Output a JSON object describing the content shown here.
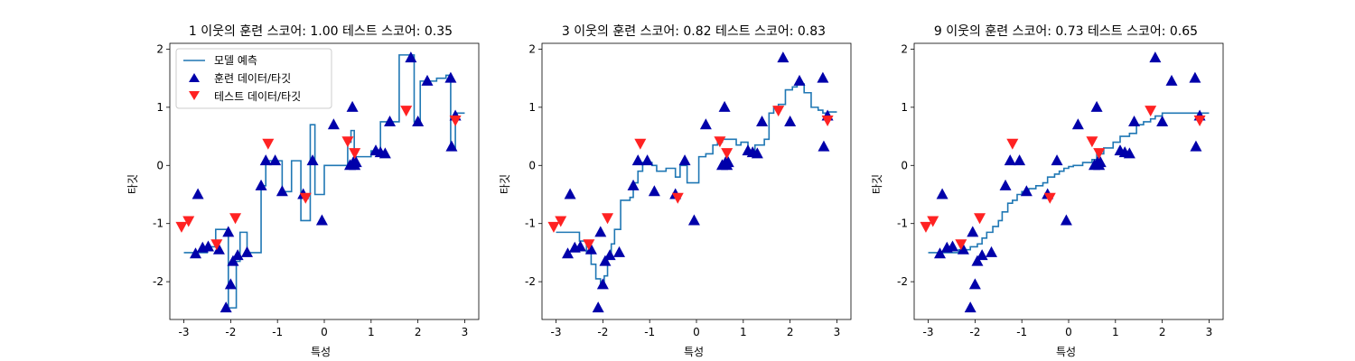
{
  "colors": {
    "model": "#1f77b4",
    "train": "#0000aa",
    "test": "#ff2222"
  },
  "legend": {
    "model": "모델 예측",
    "train": "훈련 데이터/타깃",
    "test": "테스트 데이터/타깃"
  },
  "chart_data": [
    {
      "type": "line",
      "title": "1 이웃의 훈련 스코어: 1.00 테스트 스코어: 0.35",
      "xlabel": "특성",
      "ylabel": "타깃",
      "xlim": [
        -3.3,
        3.3
      ],
      "ylim": [
        -2.65,
        2.1
      ],
      "xticks": [
        "-3",
        "-2",
        "-1",
        "0",
        "1",
        "2",
        "3"
      ],
      "yticks": [
        "-2",
        "-1",
        "0",
        "1",
        "2"
      ],
      "legend": "upper left",
      "prediction": {
        "x": [
          -3.0,
          -2.7,
          -2.6,
          -2.5,
          -2.42,
          -2.32,
          -2.2,
          -2.05,
          -1.95,
          -1.88,
          -1.8,
          -1.65,
          -1.55,
          -1.35,
          -1.25,
          -1.15,
          -1.0,
          -0.9,
          -0.75,
          -0.7,
          -0.6,
          -0.5,
          -0.45,
          -0.38,
          -0.3,
          -0.2,
          -0.05,
          0.0,
          0.1,
          0.2,
          0.3,
          0.4,
          0.5,
          0.57,
          0.64,
          0.7,
          0.8,
          1.0,
          1.1,
          1.2,
          1.35,
          1.6,
          1.72,
          1.85,
          1.92,
          2.05,
          2.2,
          2.4,
          2.6,
          2.7,
          2.8,
          3.0
        ],
        "y": [
          -1.5,
          -1.5,
          -1.5,
          -1.4,
          -1.4,
          -1.1,
          -1.1,
          -2.45,
          -2.45,
          -1.65,
          -1.15,
          -1.5,
          -1.5,
          -0.35,
          0.08,
          0.08,
          0.08,
          -0.45,
          -0.45,
          0.08,
          0.08,
          -0.95,
          -0.95,
          -0.95,
          0.7,
          -0.5,
          -0.5,
          0.0,
          0.0,
          0.0,
          0.0,
          0.0,
          0.4,
          0.6,
          0.15,
          0.15,
          0.15,
          0.25,
          0.25,
          0.75,
          0.75,
          1.9,
          1.9,
          1.9,
          0.75,
          1.45,
          1.45,
          1.5,
          1.55,
          0.3,
          0.9,
          0.9
        ]
      }
    },
    {
      "type": "line",
      "title": "3 이웃의 훈련 스코어: 0.82 테스트 스코어: 0.83",
      "xlabel": "특성",
      "ylabel": "타깃",
      "xlim": [
        -3.3,
        3.3
      ],
      "ylim": [
        -2.65,
        2.1
      ],
      "xticks": [
        "-3",
        "-2",
        "-1",
        "0",
        "1",
        "2",
        "3"
      ],
      "yticks": [
        "-2",
        "-1",
        "0",
        "1",
        "2"
      ],
      "prediction": {
        "x": [
          -3.0,
          -2.65,
          -2.5,
          -2.35,
          -2.25,
          -2.15,
          -2.05,
          -1.97,
          -1.9,
          -1.82,
          -1.75,
          -1.62,
          -1.5,
          -1.42,
          -1.35,
          -1.25,
          -1.15,
          -1.05,
          -0.95,
          -0.85,
          -0.65,
          -0.45,
          -0.35,
          -0.2,
          -0.05,
          0.05,
          0.2,
          0.35,
          0.45,
          0.55,
          0.7,
          0.85,
          0.95,
          1.1,
          1.25,
          1.35,
          1.45,
          1.55,
          1.65,
          1.75,
          1.9,
          2.05,
          2.15,
          2.3,
          2.45,
          2.6,
          2.7,
          2.8,
          3.0
        ],
        "y": [
          -1.15,
          -1.15,
          -1.3,
          -1.5,
          -1.7,
          -1.95,
          -2.1,
          -1.9,
          -1.55,
          -1.35,
          -1.1,
          -0.6,
          -0.6,
          -0.55,
          -0.3,
          -0.1,
          0.05,
          0.05,
          0.0,
          -0.1,
          -0.05,
          -0.2,
          0.0,
          -0.3,
          -0.3,
          0.15,
          0.2,
          0.35,
          0.4,
          0.45,
          0.45,
          0.35,
          0.4,
          0.2,
          0.35,
          0.35,
          0.45,
          0.9,
          1.0,
          1.05,
          1.3,
          1.35,
          1.4,
          1.25,
          1.0,
          0.95,
          0.9,
          0.92,
          0.92
        ]
      }
    },
    {
      "type": "line",
      "title": "9 이웃의 훈련 스코어: 0.73 테스트 스코어: 0.65",
      "xlabel": "특성",
      "ylabel": "타깃",
      "xlim": [
        -3.3,
        3.3
      ],
      "ylim": [
        -2.65,
        2.1
      ],
      "xticks": [
        "-3",
        "-2",
        "-1",
        "0",
        "1",
        "2",
        "3"
      ],
      "yticks": [
        "-2",
        "-1",
        "0",
        "1",
        "2"
      ],
      "prediction": {
        "x": [
          -3.0,
          -2.5,
          -2.35,
          -2.1,
          -1.95,
          -1.85,
          -1.75,
          -1.62,
          -1.5,
          -1.42,
          -1.3,
          -1.2,
          -1.1,
          -1.0,
          -0.85,
          -0.7,
          -0.55,
          -0.45,
          -0.3,
          -0.2,
          -0.1,
          0.0,
          0.1,
          0.3,
          0.5,
          0.6,
          0.75,
          0.95,
          1.1,
          1.3,
          1.45,
          1.6,
          1.75,
          1.85,
          2.0,
          2.2,
          2.5,
          3.0
        ],
        "y": [
          -1.5,
          -1.5,
          -1.45,
          -1.4,
          -1.35,
          -1.25,
          -1.15,
          -1.05,
          -0.95,
          -0.8,
          -0.65,
          -0.6,
          -0.5,
          -0.45,
          -0.4,
          -0.35,
          -0.3,
          -0.2,
          -0.15,
          -0.1,
          -0.05,
          -0.02,
          0.0,
          0.05,
          0.1,
          0.2,
          0.3,
          0.4,
          0.5,
          0.55,
          0.7,
          0.75,
          0.8,
          0.85,
          0.9,
          0.9,
          0.9,
          0.9
        ]
      }
    }
  ],
  "train_points": {
    "x": [
      -2.7,
      -2.48,
      -2.6,
      -2.75,
      -2.25,
      -2.05,
      -2.1,
      -2.0,
      -1.95,
      -1.85,
      -1.65,
      -1.35,
      -1.25,
      -1.05,
      -0.9,
      -0.45,
      -0.25,
      -0.05,
      0.2,
      0.55,
      0.6,
      0.62,
      0.65,
      0.68,
      1.1,
      1.2,
      1.3,
      1.4,
      1.85,
      2.0,
      2.2,
      2.7,
      2.72,
      2.8
    ],
    "y": [
      -0.5,
      -1.4,
      -1.42,
      -1.52,
      -1.45,
      -1.15,
      -2.45,
      -2.05,
      -1.65,
      -1.55,
      -1.5,
      -0.35,
      0.08,
      0.08,
      -0.45,
      -0.5,
      0.08,
      -0.95,
      0.7,
      0.0,
      1.0,
      0.05,
      0.0,
      0.05,
      0.25,
      0.22,
      0.2,
      0.75,
      1.85,
      0.75,
      1.45,
      1.5,
      0.32,
      0.85
    ]
  },
  "test_points": {
    "x": [
      -3.05,
      -2.9,
      -2.3,
      -1.9,
      -1.2,
      -0.4,
      0.5,
      0.65,
      1.75,
      2.8
    ],
    "y": [
      -1.05,
      -0.95,
      -1.35,
      -0.9,
      0.38,
      -0.55,
      0.42,
      0.22,
      0.95,
      0.78
    ]
  }
}
